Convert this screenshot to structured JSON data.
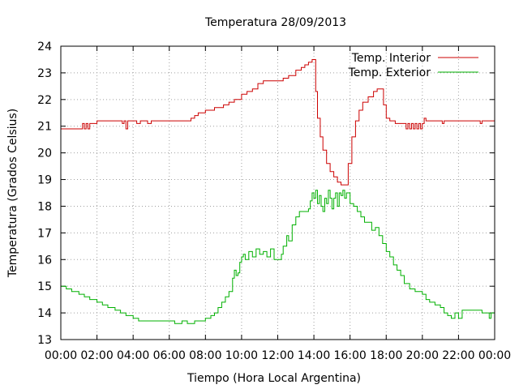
{
  "chart_data": {
    "type": "line",
    "title": "Temperatura 28/09/2013",
    "xlabel": "Tiempo (Hora Local Argentina)",
    "ylabel": "Temperatura (Grados Celsius)",
    "x_unit": "hours",
    "xlim": [
      0,
      24
    ],
    "ylim": [
      13,
      24
    ],
    "x_tick_values": [
      0,
      2,
      4,
      6,
      8,
      10,
      12,
      14,
      16,
      18,
      20,
      22,
      24
    ],
    "x_tick_labels": [
      "00:00",
      "02:00",
      "04:00",
      "06:00",
      "08:00",
      "10:00",
      "12:00",
      "14:00",
      "16:00",
      "18:00",
      "20:00",
      "22:00",
      "00:00"
    ],
    "y_ticks": [
      13,
      14,
      15,
      16,
      17,
      18,
      19,
      20,
      21,
      22,
      23,
      24
    ],
    "grid": true,
    "legend_position": "top-right",
    "series": [
      {
        "name": "Temp. Interior",
        "color": "#cc0000",
        "points": [
          [
            0,
            20.9
          ],
          [
            1,
            20.9
          ],
          [
            1.2,
            21.1
          ],
          [
            1.3,
            20.9
          ],
          [
            1.4,
            21.1
          ],
          [
            1.5,
            20.9
          ],
          [
            1.6,
            21.1
          ],
          [
            1.7,
            21.1
          ],
          [
            2,
            21.2
          ],
          [
            3,
            21.2
          ],
          [
            3.2,
            21.2
          ],
          [
            3.4,
            21.1
          ],
          [
            3.5,
            21.2
          ],
          [
            3.6,
            20.9
          ],
          [
            3.7,
            21.2
          ],
          [
            4,
            21.2
          ],
          [
            4.2,
            21.1
          ],
          [
            4.4,
            21.2
          ],
          [
            4.6,
            21.2
          ],
          [
            4.8,
            21.1
          ],
          [
            5,
            21.2
          ],
          [
            6,
            21.2
          ],
          [
            7,
            21.2
          ],
          [
            7.2,
            21.3
          ],
          [
            7.4,
            21.4
          ],
          [
            7.6,
            21.5
          ],
          [
            8,
            21.6
          ],
          [
            8.5,
            21.7
          ],
          [
            9,
            21.8
          ],
          [
            9.3,
            21.9
          ],
          [
            9.6,
            22.0
          ],
          [
            10,
            22.2
          ],
          [
            10.3,
            22.3
          ],
          [
            10.6,
            22.4
          ],
          [
            10.9,
            22.6
          ],
          [
            11.2,
            22.7
          ],
          [
            12,
            22.7
          ],
          [
            12.3,
            22.8
          ],
          [
            12.6,
            22.9
          ],
          [
            13,
            23.1
          ],
          [
            13.3,
            23.2
          ],
          [
            13.5,
            23.3
          ],
          [
            13.7,
            23.4
          ],
          [
            13.9,
            23.5
          ],
          [
            14,
            23.5
          ],
          [
            14.1,
            22.3
          ],
          [
            14.2,
            21.3
          ],
          [
            14.35,
            20.6
          ],
          [
            14.5,
            20.1
          ],
          [
            14.7,
            19.6
          ],
          [
            14.9,
            19.3
          ],
          [
            15.1,
            19.1
          ],
          [
            15.3,
            18.9
          ],
          [
            15.5,
            18.8
          ],
          [
            15.75,
            18.8
          ],
          [
            15.9,
            19.6
          ],
          [
            16.1,
            20.6
          ],
          [
            16.3,
            21.2
          ],
          [
            16.5,
            21.6
          ],
          [
            16.7,
            21.9
          ],
          [
            17,
            22.1
          ],
          [
            17.3,
            22.3
          ],
          [
            17.5,
            22.4
          ],
          [
            17.7,
            22.4
          ],
          [
            17.85,
            21.8
          ],
          [
            18,
            21.3
          ],
          [
            18.2,
            21.2
          ],
          [
            18.5,
            21.1
          ],
          [
            19,
            21.1
          ],
          [
            19.1,
            20.9
          ],
          [
            19.2,
            21.1
          ],
          [
            19.3,
            20.9
          ],
          [
            19.4,
            21.1
          ],
          [
            19.5,
            20.9
          ],
          [
            19.6,
            21.1
          ],
          [
            19.7,
            20.9
          ],
          [
            19.8,
            21.1
          ],
          [
            19.9,
            20.9
          ],
          [
            20,
            21.1
          ],
          [
            20.1,
            21.3
          ],
          [
            20.2,
            21.2
          ],
          [
            21,
            21.2
          ],
          [
            21.1,
            21.1
          ],
          [
            21.2,
            21.2
          ],
          [
            22,
            21.2
          ],
          [
            23,
            21.2
          ],
          [
            23.2,
            21.1
          ],
          [
            23.3,
            21.2
          ],
          [
            24,
            21.2
          ]
        ]
      },
      {
        "name": "Temp. Exterior",
        "color": "#00b000",
        "points": [
          [
            0,
            15.0
          ],
          [
            0.3,
            14.9
          ],
          [
            0.6,
            14.8
          ],
          [
            1,
            14.7
          ],
          [
            1.3,
            14.6
          ],
          [
            1.6,
            14.5
          ],
          [
            2,
            14.4
          ],
          [
            2.3,
            14.3
          ],
          [
            2.6,
            14.2
          ],
          [
            3,
            14.1
          ],
          [
            3.3,
            14.0
          ],
          [
            3.6,
            13.9
          ],
          [
            4,
            13.8
          ],
          [
            4.3,
            13.7
          ],
          [
            5,
            13.7
          ],
          [
            5.5,
            13.7
          ],
          [
            6,
            13.7
          ],
          [
            6.3,
            13.6
          ],
          [
            6.7,
            13.7
          ],
          [
            7,
            13.6
          ],
          [
            7.4,
            13.7
          ],
          [
            7.7,
            13.7
          ],
          [
            8,
            13.8
          ],
          [
            8.3,
            13.9
          ],
          [
            8.5,
            14.0
          ],
          [
            8.7,
            14.2
          ],
          [
            8.9,
            14.4
          ],
          [
            9.1,
            14.6
          ],
          [
            9.3,
            14.8
          ],
          [
            9.5,
            15.3
          ],
          [
            9.6,
            15.6
          ],
          [
            9.7,
            15.4
          ],
          [
            9.8,
            15.5
          ],
          [
            9.9,
            15.9
          ],
          [
            10,
            16.1
          ],
          [
            10.1,
            16.2
          ],
          [
            10.2,
            16.0
          ],
          [
            10.4,
            16.3
          ],
          [
            10.6,
            16.1
          ],
          [
            10.8,
            16.4
          ],
          [
            11,
            16.2
          ],
          [
            11.2,
            16.3
          ],
          [
            11.4,
            16.1
          ],
          [
            11.6,
            16.4
          ],
          [
            11.8,
            16.0
          ],
          [
            12,
            16.0
          ],
          [
            12.2,
            16.2
          ],
          [
            12.3,
            16.5
          ],
          [
            12.5,
            16.9
          ],
          [
            12.6,
            16.7
          ],
          [
            12.8,
            17.3
          ],
          [
            13,
            17.6
          ],
          [
            13.2,
            17.8
          ],
          [
            13.5,
            17.8
          ],
          [
            13.7,
            17.9
          ],
          [
            13.8,
            18.2
          ],
          [
            13.9,
            18.5
          ],
          [
            14,
            18.3
          ],
          [
            14.1,
            18.6
          ],
          [
            14.2,
            18.1
          ],
          [
            14.3,
            18.4
          ],
          [
            14.4,
            18.0
          ],
          [
            14.5,
            17.8
          ],
          [
            14.6,
            18.3
          ],
          [
            14.7,
            18.1
          ],
          [
            14.8,
            18.6
          ],
          [
            14.9,
            18.3
          ],
          [
            15,
            17.9
          ],
          [
            15.1,
            18.3
          ],
          [
            15.2,
            18.5
          ],
          [
            15.3,
            18.0
          ],
          [
            15.4,
            18.5
          ],
          [
            15.5,
            18.4
          ],
          [
            15.6,
            18.6
          ],
          [
            15.7,
            18.3
          ],
          [
            15.8,
            18.5
          ],
          [
            16,
            18.1
          ],
          [
            16.2,
            18.0
          ],
          [
            16.4,
            17.8
          ],
          [
            16.6,
            17.6
          ],
          [
            16.8,
            17.4
          ],
          [
            17,
            17.4
          ],
          [
            17.2,
            17.1
          ],
          [
            17.4,
            17.2
          ],
          [
            17.6,
            16.9
          ],
          [
            17.8,
            16.6
          ],
          [
            18,
            16.3
          ],
          [
            18.2,
            16.1
          ],
          [
            18.4,
            15.8
          ],
          [
            18.6,
            15.6
          ],
          [
            18.8,
            15.4
          ],
          [
            19,
            15.1
          ],
          [
            19.3,
            14.9
          ],
          [
            19.6,
            14.8
          ],
          [
            20,
            14.7
          ],
          [
            20.2,
            14.5
          ],
          [
            20.4,
            14.4
          ],
          [
            20.7,
            14.3
          ],
          [
            21,
            14.2
          ],
          [
            21.2,
            14.0
          ],
          [
            21.4,
            13.9
          ],
          [
            21.6,
            13.8
          ],
          [
            21.8,
            14.0
          ],
          [
            22,
            13.8
          ],
          [
            22.2,
            14.1
          ],
          [
            22.5,
            14.1
          ],
          [
            23,
            14.1
          ],
          [
            23.3,
            14.0
          ],
          [
            23.5,
            14.0
          ],
          [
            23.7,
            13.8
          ],
          [
            23.8,
            14.0
          ],
          [
            24,
            14.0
          ]
        ]
      }
    ]
  }
}
